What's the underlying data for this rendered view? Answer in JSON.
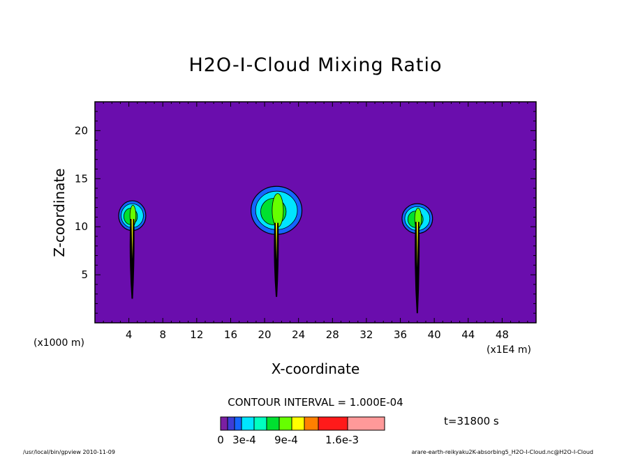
{
  "chart_data": {
    "type": "heatmap",
    "title": "H2O-I-Cloud Mixing Ratio",
    "xlabel": "X-coordinate",
    "ylabel": "Z-coordinate",
    "x_unit_left": "(x1000 m)",
    "x_unit_right": "(x1E4 m)",
    "xlim": [
      0,
      52
    ],
    "ylim": [
      0,
      23
    ],
    "xticks": [
      4,
      8,
      12,
      16,
      20,
      24,
      28,
      32,
      36,
      40,
      44,
      48
    ],
    "yticks": [
      5,
      10,
      15,
      20
    ],
    "background_color": "#6a0dad",
    "contour_interval_text": "CONTOUR INTERVAL = 1.000E-04",
    "time_text": "t=31800 s",
    "colorbar": {
      "colors": [
        "#7b1fa2",
        "#3d3dd6",
        "#1565ff",
        "#00e5ff",
        "#00ffc0",
        "#00e030",
        "#66ff00",
        "#ffff00",
        "#ff8000",
        "#ff1a1a",
        "#ff9999"
      ],
      "labels": [
        "0",
        "3e-4",
        "9e-4",
        "1.6e-3"
      ]
    },
    "clouds": [
      {
        "x_center": 4.4,
        "anvil_top": 12.7,
        "anvil_bottom": 9.6,
        "anvil_halfwidth": 1.6,
        "stem_bottom": 2.5
      },
      {
        "x_center": 21.4,
        "anvil_top": 14.2,
        "anvil_bottom": 9.2,
        "anvil_halfwidth": 3.0,
        "stem_bottom": 2.7
      },
      {
        "x_center": 38.0,
        "anvil_top": 12.4,
        "anvil_bottom": 9.3,
        "anvil_halfwidth": 1.8,
        "stem_bottom": 1.0
      }
    ]
  },
  "footer": {
    "left": "/usr/local/bin/gpview   2010-11-09",
    "right": "arare-earth-reikyaku2K-absorbing5_H2O-I-Cloud.nc@H2O-I-Cloud"
  }
}
